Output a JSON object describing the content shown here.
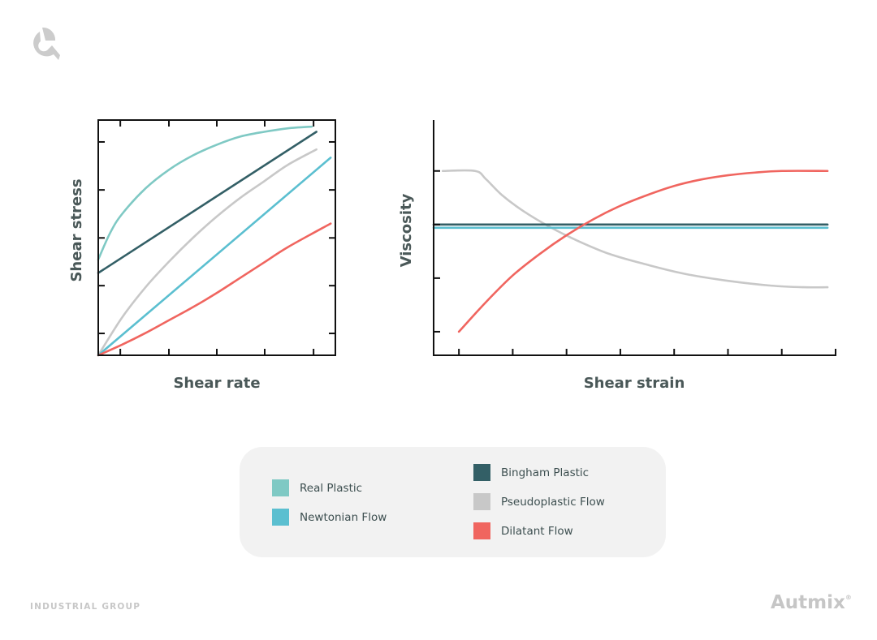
{
  "brand": {
    "footer_left": "INDUSTRIAL GROUP",
    "name": "Autmix",
    "registered": "®",
    "logo_icon": "autmix-c-logo-icon"
  },
  "chart_data": [
    {
      "type": "line",
      "xlabel": "Shear rate",
      "ylabel": "Shear stress",
      "xlim": [
        0,
        10
      ],
      "ylim": [
        0,
        10
      ],
      "xticks": [
        0.93,
        2.98,
        5.0,
        7.02,
        9.08
      ],
      "yticks": [
        0.93,
        2.96,
        4.99,
        7.03,
        9.07
      ],
      "grid": false,
      "series": [
        {
          "name": "Real Plastic",
          "color": "#7fc9c4",
          "points": [
            [
              0,
              4.07
            ],
            [
              0.5,
              5.2
            ],
            [
              1,
              6.0
            ],
            [
              2,
              7.1
            ],
            [
              3,
              7.9
            ],
            [
              4,
              8.5
            ],
            [
              5,
              8.95
            ],
            [
              6,
              9.3
            ],
            [
              7,
              9.5
            ],
            [
              8,
              9.65
            ],
            [
              9,
              9.72
            ]
          ]
        },
        {
          "name": "Bingham Plastic",
          "color": "#335f66",
          "points": [
            [
              0,
              3.5
            ],
            [
              9.2,
              9.5
            ]
          ]
        },
        {
          "name": "Pseudoplastic Flow",
          "color": "#c8c8c8",
          "points": [
            [
              0,
              0
            ],
            [
              1,
              1.6
            ],
            [
              2,
              2.9
            ],
            [
              3,
              4.0
            ],
            [
              4,
              5.0
            ],
            [
              5,
              5.9
            ],
            [
              6,
              6.7
            ],
            [
              7,
              7.4
            ],
            [
              8,
              8.1
            ],
            [
              9.2,
              8.75
            ]
          ]
        },
        {
          "name": "Newtonian Flow",
          "color": "#5bbfd0",
          "points": [
            [
              0,
              0
            ],
            [
              9.8,
              8.4
            ]
          ]
        },
        {
          "name": "Dilatant Flow",
          "color": "#f0655f",
          "points": [
            [
              0,
              0
            ],
            [
              1,
              0.45
            ],
            [
              2,
              0.95
            ],
            [
              3,
              1.5
            ],
            [
              4,
              2.05
            ],
            [
              5,
              2.65
            ],
            [
              6,
              3.3
            ],
            [
              7,
              3.95
            ],
            [
              8,
              4.6
            ],
            [
              9.8,
              5.6
            ]
          ]
        }
      ]
    },
    {
      "type": "line",
      "xlabel": "Shear strain",
      "ylabel": "Viscosity",
      "xlim": [
        0.53,
        8
      ],
      "ylim": [
        0.56,
        4.95
      ],
      "xticks": [
        1,
        2,
        3,
        4,
        5,
        6,
        7,
        8
      ],
      "yticks": [
        1,
        2,
        3,
        4
      ],
      "grid": false,
      "series": [
        {
          "name": "Pseudoplastic Flow",
          "color": "#c8c8c8",
          "points": [
            [
              0.7,
              4
            ],
            [
              1.3,
              4
            ],
            [
              1.5,
              3.85
            ],
            [
              1.8,
              3.55
            ],
            [
              2.2,
              3.25
            ],
            [
              2.7,
              2.95
            ],
            [
              3.2,
              2.7
            ],
            [
              3.8,
              2.45
            ],
            [
              4.5,
              2.25
            ],
            [
              5.2,
              2.08
            ],
            [
              6,
              1.95
            ],
            [
              6.8,
              1.86
            ],
            [
              7.4,
              1.83
            ],
            [
              7.85,
              1.83
            ]
          ]
        },
        {
          "name": "Newtonian Flow",
          "color": "#5bbfd0",
          "points": [
            [
              0.53,
              2.94
            ],
            [
              7.85,
              2.94
            ]
          ]
        },
        {
          "name": "Bingham Plastic",
          "color": "#335f66",
          "points": [
            [
              0.53,
              3.0
            ],
            [
              7.85,
              3.0
            ]
          ]
        },
        {
          "name": "Dilatant Flow",
          "color": "#f0655f",
          "points": [
            [
              1,
              1
            ],
            [
              1.5,
              1.55
            ],
            [
              2,
              2.05
            ],
            [
              2.5,
              2.45
            ],
            [
              3,
              2.8
            ],
            [
              3.5,
              3.1
            ],
            [
              4,
              3.35
            ],
            [
              4.5,
              3.55
            ],
            [
              5,
              3.72
            ],
            [
              5.5,
              3.84
            ],
            [
              6,
              3.92
            ],
            [
              6.5,
              3.97
            ],
            [
              7,
              4.0
            ],
            [
              7.85,
              4.0
            ]
          ]
        }
      ]
    }
  ],
  "legend": {
    "items": [
      {
        "label": "Real Plastic",
        "color": "#7fc9c4"
      },
      {
        "label": "Newtonian Flow",
        "color": "#5bbfd0"
      },
      {
        "label": "Bingham Plastic",
        "color": "#335f66"
      },
      {
        "label": "Pseudoplastic Flow",
        "color": "#c8c8c8"
      },
      {
        "label": "Dilatant Flow",
        "color": "#f0655f"
      }
    ]
  }
}
